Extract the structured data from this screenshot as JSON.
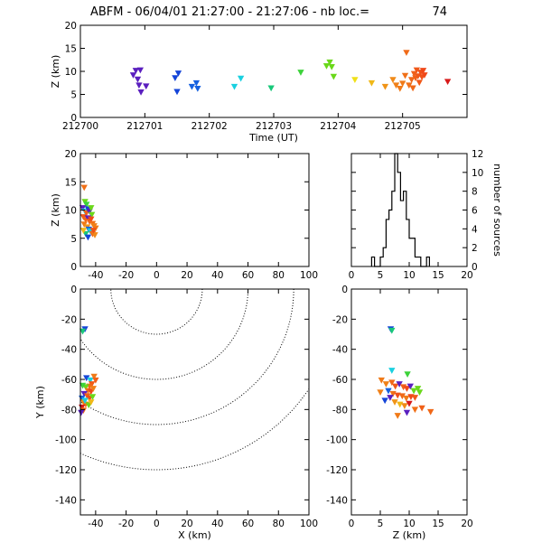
{
  "header": {
    "title_left": "ABFM - 06/04/01 21:27:00 - 21:27:06 - nb loc.=",
    "count": "74"
  },
  "chart_data": [
    {
      "id": "time_z",
      "type": "scatter",
      "xlabel": "Time (UT)",
      "ylabel": "Z (km)",
      "xlim": [
        212700,
        212706
      ],
      "ylim": [
        0,
        20
      ],
      "xticks": [
        212700,
        212701,
        212702,
        212703,
        212704,
        212705
      ],
      "yticks": [
        0,
        5,
        10,
        15,
        20
      ],
      "points": [
        {
          "x": 212700.82,
          "y": 9.2,
          "c": "#5a1fbf"
        },
        {
          "x": 212700.86,
          "y": 10.2,
          "c": "#5a1fbf"
        },
        {
          "x": 212700.93,
          "y": 10.3,
          "c": "#5a1fbf"
        },
        {
          "x": 212700.89,
          "y": 8.3,
          "c": "#5a1fbf"
        },
        {
          "x": 212700.91,
          "y": 7.0,
          "c": "#5a1fbf"
        },
        {
          "x": 212700.94,
          "y": 5.5,
          "c": "#5a1fbf"
        },
        {
          "x": 212701.02,
          "y": 6.8,
          "c": "#5a1fbf"
        },
        {
          "x": 212701.47,
          "y": 8.6,
          "c": "#1545d8"
        },
        {
          "x": 212701.52,
          "y": 9.6,
          "c": "#1545d8"
        },
        {
          "x": 212701.5,
          "y": 5.6,
          "c": "#1545d8"
        },
        {
          "x": 212701.73,
          "y": 6.7,
          "c": "#1560e0"
        },
        {
          "x": 212701.8,
          "y": 7.5,
          "c": "#1560e0"
        },
        {
          "x": 212701.82,
          "y": 6.3,
          "c": "#1560e0"
        },
        {
          "x": 212702.39,
          "y": 6.7,
          "c": "#1ad0e0"
        },
        {
          "x": 212702.49,
          "y": 8.5,
          "c": "#1ad0e0"
        },
        {
          "x": 212702.96,
          "y": 6.4,
          "c": "#19c87a"
        },
        {
          "x": 212703.42,
          "y": 9.8,
          "c": "#3cd23a"
        },
        {
          "x": 212703.82,
          "y": 11.2,
          "c": "#6ad81a"
        },
        {
          "x": 212703.87,
          "y": 12.0,
          "c": "#6ad81a"
        },
        {
          "x": 212703.9,
          "y": 11.0,
          "c": "#6ad81a"
        },
        {
          "x": 212703.93,
          "y": 8.9,
          "c": "#6ad81a"
        },
        {
          "x": 212704.26,
          "y": 8.2,
          "c": "#f0e018"
        },
        {
          "x": 212704.52,
          "y": 7.5,
          "c": "#f0b818"
        },
        {
          "x": 212704.73,
          "y": 6.7,
          "c": "#f09418"
        },
        {
          "x": 212704.85,
          "y": 8.2,
          "c": "#f08a18"
        },
        {
          "x": 212704.9,
          "y": 7.0,
          "c": "#f08018"
        },
        {
          "x": 212704.96,
          "y": 6.3,
          "c": "#f07a18"
        },
        {
          "x": 212705.0,
          "y": 7.4,
          "c": "#f07a18"
        },
        {
          "x": 212705.04,
          "y": 9.1,
          "c": "#f07018"
        },
        {
          "x": 212705.06,
          "y": 14.1,
          "c": "#f06a18"
        },
        {
          "x": 212705.1,
          "y": 7.0,
          "c": "#f07018"
        },
        {
          "x": 212705.14,
          "y": 8.2,
          "c": "#f06818"
        },
        {
          "x": 212705.16,
          "y": 6.4,
          "c": "#f06818"
        },
        {
          "x": 212705.18,
          "y": 9.5,
          "c": "#f06018"
        },
        {
          "x": 212705.2,
          "y": 8.6,
          "c": "#f06018"
        },
        {
          "x": 212705.22,
          "y": 10.3,
          "c": "#f05818"
        },
        {
          "x": 212705.24,
          "y": 9.0,
          "c": "#f05818"
        },
        {
          "x": 212705.26,
          "y": 7.6,
          "c": "#f05818"
        },
        {
          "x": 212705.28,
          "y": 9.8,
          "c": "#f05018"
        },
        {
          "x": 212705.3,
          "y": 8.8,
          "c": "#f05018"
        },
        {
          "x": 212705.32,
          "y": 10.2,
          "c": "#f04818"
        },
        {
          "x": 212705.34,
          "y": 9.2,
          "c": "#f04818"
        },
        {
          "x": 212705.7,
          "y": 7.8,
          "c": "#d81a1a"
        }
      ]
    },
    {
      "id": "x_z",
      "type": "scatter",
      "ylabel": "Z (km)",
      "xlim": [
        -50,
        100
      ],
      "ylim": [
        0,
        20
      ],
      "xticks": [
        -40,
        -20,
        0,
        20,
        40,
        60,
        80,
        100
      ],
      "yticks": [
        0,
        5,
        10,
        15,
        20
      ],
      "points": [
        {
          "x": -47.5,
          "y": 14.0,
          "c": "#f07018"
        },
        {
          "x": -47.0,
          "y": 11.5,
          "c": "#6ad81a"
        },
        {
          "x": -46.0,
          "y": 11.0,
          "c": "#3cd23a"
        },
        {
          "x": -48.5,
          "y": 10.4,
          "c": "#5a1fbf"
        },
        {
          "x": -47.0,
          "y": 9.8,
          "c": "#1ad0e0"
        },
        {
          "x": -46.0,
          "y": 9.5,
          "c": "#f06018"
        },
        {
          "x": -45.0,
          "y": 10.2,
          "c": "#1545d8"
        },
        {
          "x": -44.0,
          "y": 9.8,
          "c": "#5a1fbf"
        },
        {
          "x": -43.0,
          "y": 10.4,
          "c": "#6ad81a"
        },
        {
          "x": -42.5,
          "y": 9.2,
          "c": "#6ad81a"
        },
        {
          "x": -48.0,
          "y": 8.8,
          "c": "#f05818"
        },
        {
          "x": -46.5,
          "y": 8.3,
          "c": "#f06818"
        },
        {
          "x": -45.0,
          "y": 8.6,
          "c": "#5a1fbf"
        },
        {
          "x": -44.0,
          "y": 8.0,
          "c": "#f06018"
        },
        {
          "x": -43.0,
          "y": 8.4,
          "c": "#f04818"
        },
        {
          "x": -42.0,
          "y": 7.6,
          "c": "#f07018"
        },
        {
          "x": -41.0,
          "y": 7.2,
          "c": "#f08018"
        },
        {
          "x": -40.0,
          "y": 6.8,
          "c": "#f07a18"
        },
        {
          "x": -47.5,
          "y": 7.5,
          "c": "#f07a18"
        },
        {
          "x": -45.5,
          "y": 7.0,
          "c": "#f09418"
        },
        {
          "x": -44.5,
          "y": 6.6,
          "c": "#1560e0"
        },
        {
          "x": -43.5,
          "y": 6.3,
          "c": "#1ad0e0"
        },
        {
          "x": -42.0,
          "y": 5.8,
          "c": "#f06818"
        },
        {
          "x": -40.5,
          "y": 5.6,
          "c": "#f08a18"
        },
        {
          "x": -46.5,
          "y": 5.8,
          "c": "#19c87a"
        },
        {
          "x": -45.0,
          "y": 5.2,
          "c": "#1545d8"
        },
        {
          "x": -48.0,
          "y": 6.4,
          "c": "#f0b818"
        },
        {
          "x": -41.5,
          "y": 6.4,
          "c": "#f05018"
        }
      ]
    },
    {
      "id": "histogram",
      "type": "bar",
      "ylabel": "number of sources",
      "xlim": [
        0,
        20
      ],
      "ylim": [
        0,
        12
      ],
      "xticks": [
        0,
        5,
        10,
        15,
        20
      ],
      "yticks": [
        0,
        2,
        4,
        6,
        8,
        10,
        12
      ],
      "bin_width": 0.5,
      "bins": [
        {
          "x0": 3.5,
          "v": 1
        },
        {
          "x0": 4.0,
          "v": 0
        },
        {
          "x0": 4.5,
          "v": 0
        },
        {
          "x0": 5.0,
          "v": 1
        },
        {
          "x0": 5.5,
          "v": 2
        },
        {
          "x0": 6.0,
          "v": 5
        },
        {
          "x0": 6.5,
          "v": 6
        },
        {
          "x0": 7.0,
          "v": 8
        },
        {
          "x0": 7.5,
          "v": 12
        },
        {
          "x0": 8.0,
          "v": 10
        },
        {
          "x0": 8.5,
          "v": 7
        },
        {
          "x0": 9.0,
          "v": 8
        },
        {
          "x0": 9.5,
          "v": 5
        },
        {
          "x0": 10.0,
          "v": 3
        },
        {
          "x0": 10.5,
          "v": 3
        },
        {
          "x0": 11.0,
          "v": 1
        },
        {
          "x0": 11.5,
          "v": 1
        },
        {
          "x0": 12.0,
          "v": 0
        },
        {
          "x0": 12.5,
          "v": 0
        },
        {
          "x0": 13.0,
          "v": 1
        }
      ]
    },
    {
      "id": "x_y",
      "type": "scatter",
      "xlabel": "X (km)",
      "ylabel": "Y (km)",
      "xlim": [
        -50,
        100
      ],
      "ylim": [
        -150,
        0
      ],
      "xticks": [
        -40,
        -20,
        0,
        20,
        40,
        60,
        80,
        100
      ],
      "yticks": [
        -140,
        -120,
        -100,
        -80,
        -60,
        -40,
        -20,
        0
      ],
      "range_rings": {
        "center": [
          0,
          0
        ],
        "radii": [
          30,
          60,
          90,
          120
        ]
      },
      "points": [
        {
          "x": -47.0,
          "y": -26.5,
          "c": "#1545d8"
        },
        {
          "x": -48.5,
          "y": -28.0,
          "c": "#19c87a"
        },
        {
          "x": -46.0,
          "y": -59.0,
          "c": "#1545d8"
        },
        {
          "x": -43.5,
          "y": -60.5,
          "c": "#1ad0e0"
        },
        {
          "x": -41.0,
          "y": -58.0,
          "c": "#f07a18"
        },
        {
          "x": -40.0,
          "y": -60.5,
          "c": "#f06018"
        },
        {
          "x": -42.5,
          "y": -63.0,
          "c": "#f05818"
        },
        {
          "x": -44.0,
          "y": -64.5,
          "c": "#f06818"
        },
        {
          "x": -46.5,
          "y": -65.0,
          "c": "#6ad81a"
        },
        {
          "x": -48.5,
          "y": -64.0,
          "c": "#3cd23a"
        },
        {
          "x": -45.0,
          "y": -67.5,
          "c": "#f07018"
        },
        {
          "x": -43.0,
          "y": -68.0,
          "c": "#f04818"
        },
        {
          "x": -41.5,
          "y": -66.0,
          "c": "#f08018"
        },
        {
          "x": -47.5,
          "y": -69.5,
          "c": "#5a1fbf"
        },
        {
          "x": -45.5,
          "y": -71.0,
          "c": "#f06018"
        },
        {
          "x": -44.0,
          "y": -72.5,
          "c": "#f05018"
        },
        {
          "x": -42.0,
          "y": -71.5,
          "c": "#6ad81a"
        },
        {
          "x": -49.0,
          "y": -72.5,
          "c": "#1560e0"
        },
        {
          "x": -48.0,
          "y": -75.0,
          "c": "#f09418"
        },
        {
          "x": -46.5,
          "y": -76.5,
          "c": "#f07a18"
        },
        {
          "x": -44.5,
          "y": -77.0,
          "c": "#6ad81a"
        },
        {
          "x": -49.0,
          "y": -78.5,
          "c": "#d81a1a"
        },
        {
          "x": -48.0,
          "y": -80.5,
          "c": "#f06818"
        },
        {
          "x": -49.5,
          "y": -82.0,
          "c": "#5a1fbf"
        },
        {
          "x": -47.0,
          "y": -74.0,
          "c": "#1ad0e0"
        },
        {
          "x": -43.0,
          "y": -75.0,
          "c": "#f0b818"
        }
      ]
    },
    {
      "id": "z_y",
      "type": "scatter",
      "xlabel": "Z (km)",
      "xlim": [
        0,
        20
      ],
      "ylim": [
        -150,
        0
      ],
      "xticks": [
        0,
        5,
        10,
        15,
        20
      ],
      "yticks": [
        -140,
        -120,
        -100,
        -80,
        -60,
        -40,
        -20,
        0
      ],
      "points": [
        {
          "x": 6.8,
          "y": -26.5,
          "c": "#1545d8"
        },
        {
          "x": 7.0,
          "y": -27.5,
          "c": "#19c87a"
        },
        {
          "x": 7.0,
          "y": -54.0,
          "c": "#1ad0e0"
        },
        {
          "x": 9.7,
          "y": -56.5,
          "c": "#3cd23a"
        },
        {
          "x": 5.2,
          "y": -60.5,
          "c": "#f07a18"
        },
        {
          "x": 6.0,
          "y": -63.0,
          "c": "#f08018"
        },
        {
          "x": 7.0,
          "y": -62.0,
          "c": "#f06818"
        },
        {
          "x": 7.6,
          "y": -64.5,
          "c": "#f05818"
        },
        {
          "x": 8.3,
          "y": -63.0,
          "c": "#5a1fbf"
        },
        {
          "x": 9.0,
          "y": -65.0,
          "c": "#f06018"
        },
        {
          "x": 9.6,
          "y": -66.0,
          "c": "#f04818"
        },
        {
          "x": 10.2,
          "y": -64.5,
          "c": "#5a1fbf"
        },
        {
          "x": 10.8,
          "y": -67.5,
          "c": "#6ad81a"
        },
        {
          "x": 11.5,
          "y": -66.0,
          "c": "#6ad81a"
        },
        {
          "x": 11.8,
          "y": -68.5,
          "c": "#6ad81a"
        },
        {
          "x": 6.4,
          "y": -67.5,
          "c": "#1560e0"
        },
        {
          "x": 7.2,
          "y": -69.5,
          "c": "#f07018"
        },
        {
          "x": 8.0,
          "y": -70.5,
          "c": "#f05018"
        },
        {
          "x": 8.8,
          "y": -71.0,
          "c": "#f06818"
        },
        {
          "x": 9.5,
          "y": -72.5,
          "c": "#f07a18"
        },
        {
          "x": 10.3,
          "y": -71.5,
          "c": "#f04818"
        },
        {
          "x": 11.0,
          "y": -72.0,
          "c": "#f05818"
        },
        {
          "x": 6.7,
          "y": -72.0,
          "c": "#5a1fbf"
        },
        {
          "x": 5.8,
          "y": -74.0,
          "c": "#1545d8"
        },
        {
          "x": 7.5,
          "y": -75.0,
          "c": "#f09418"
        },
        {
          "x": 8.4,
          "y": -76.5,
          "c": "#f0b818"
        },
        {
          "x": 9.2,
          "y": -77.5,
          "c": "#f08a18"
        },
        {
          "x": 10.0,
          "y": -76.0,
          "c": "#d81a1a"
        },
        {
          "x": 11.0,
          "y": -80.0,
          "c": "#f07018"
        },
        {
          "x": 12.2,
          "y": -79.0,
          "c": "#f06018"
        },
        {
          "x": 13.7,
          "y": -81.5,
          "c": "#f06818"
        },
        {
          "x": 8.0,
          "y": -84.0,
          "c": "#f07a18"
        },
        {
          "x": 9.6,
          "y": -82.0,
          "c": "#5a1fbf"
        },
        {
          "x": 5.0,
          "y": -68.5,
          "c": "#f08018"
        }
      ]
    }
  ]
}
